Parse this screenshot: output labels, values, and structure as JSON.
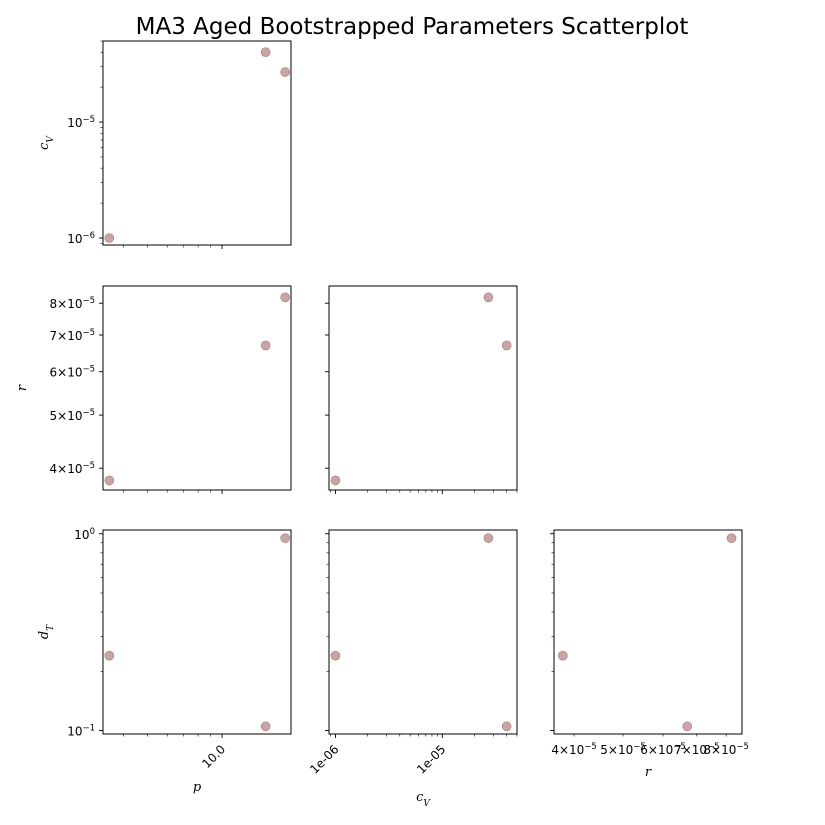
{
  "chart_data": {
    "type": "scatter",
    "title": "MA3 Aged Bootstrapped Parameters Scatterplot",
    "variables": [
      {
        "key": "p",
        "label": "p",
        "sub": null,
        "values": [
          3.5,
          15.0,
          18.0
        ]
      },
      {
        "key": "c_V",
        "label": "c",
        "sub": "V",
        "values": [
          1e-06,
          4e-05,
          2.7e-05
        ]
      },
      {
        "key": "r",
        "label": "r",
        "sub": null,
        "values": [
          3.8e-05,
          6.7e-05,
          8.2e-05
        ]
      },
      {
        "key": "d_T",
        "label": "d",
        "sub": "T",
        "values": [
          0.24,
          0.105,
          0.95
        ]
      }
    ],
    "panels": [
      {
        "x": "p",
        "y": "c_V"
      },
      {
        "x": "p",
        "y": "r"
      },
      {
        "x": "c_V",
        "y": "r"
      },
      {
        "x": "p",
        "y": "d_T"
      },
      {
        "x": "c_V",
        "y": "d_T"
      },
      {
        "x": "r",
        "y": "d_T"
      }
    ],
    "axes": {
      "p": {
        "scale": "log",
        "lim": [
          3.3,
          19.0
        ],
        "tick_labels": [
          {
            "value": 10,
            "text": "10.0"
          }
        ]
      },
      "c_V": {
        "scale": "log",
        "lim": [
          8.7e-07,
          5e-05
        ],
        "tick_labels": [
          {
            "value": 1e-06,
            "text": "1e-06"
          },
          {
            "value": 1e-05,
            "text": "1e-05"
          }
        ],
        "y_tick_labels": [
          {
            "value": 1e-06,
            "base": "10",
            "exp": "−6"
          },
          {
            "value": 1e-05,
            "base": "10",
            "exp": "−5"
          }
        ]
      },
      "r": {
        "scale": "log",
        "lim": [
          3.65e-05,
          8.6e-05
        ],
        "tick_labels": [
          {
            "value": 4e-05,
            "mant": "4",
            "exp": "−5"
          },
          {
            "value": 5e-05,
            "mant": "5",
            "exp": "−5"
          },
          {
            "value": 6e-05,
            "mant": "6",
            "exp": "−5"
          },
          {
            "value": 7e-05,
            "mant": "7",
            "exp": "−5"
          },
          {
            "value": 8e-05,
            "mant": "8",
            "exp": "−5"
          }
        ]
      },
      "d_T": {
        "scale": "log",
        "lim": [
          0.096,
          1.045
        ],
        "tick_labels": [
          {
            "value": 0.1,
            "base": "10",
            "exp": "−1"
          },
          {
            "value": 1.0,
            "base": "10",
            "exp": "0"
          }
        ]
      }
    },
    "xlabels": {
      "p": "p",
      "c_V": "c_V",
      "r": "r"
    },
    "ylabels": {
      "c_V": "c_V",
      "r": "r",
      "d_T": "d_T"
    }
  }
}
